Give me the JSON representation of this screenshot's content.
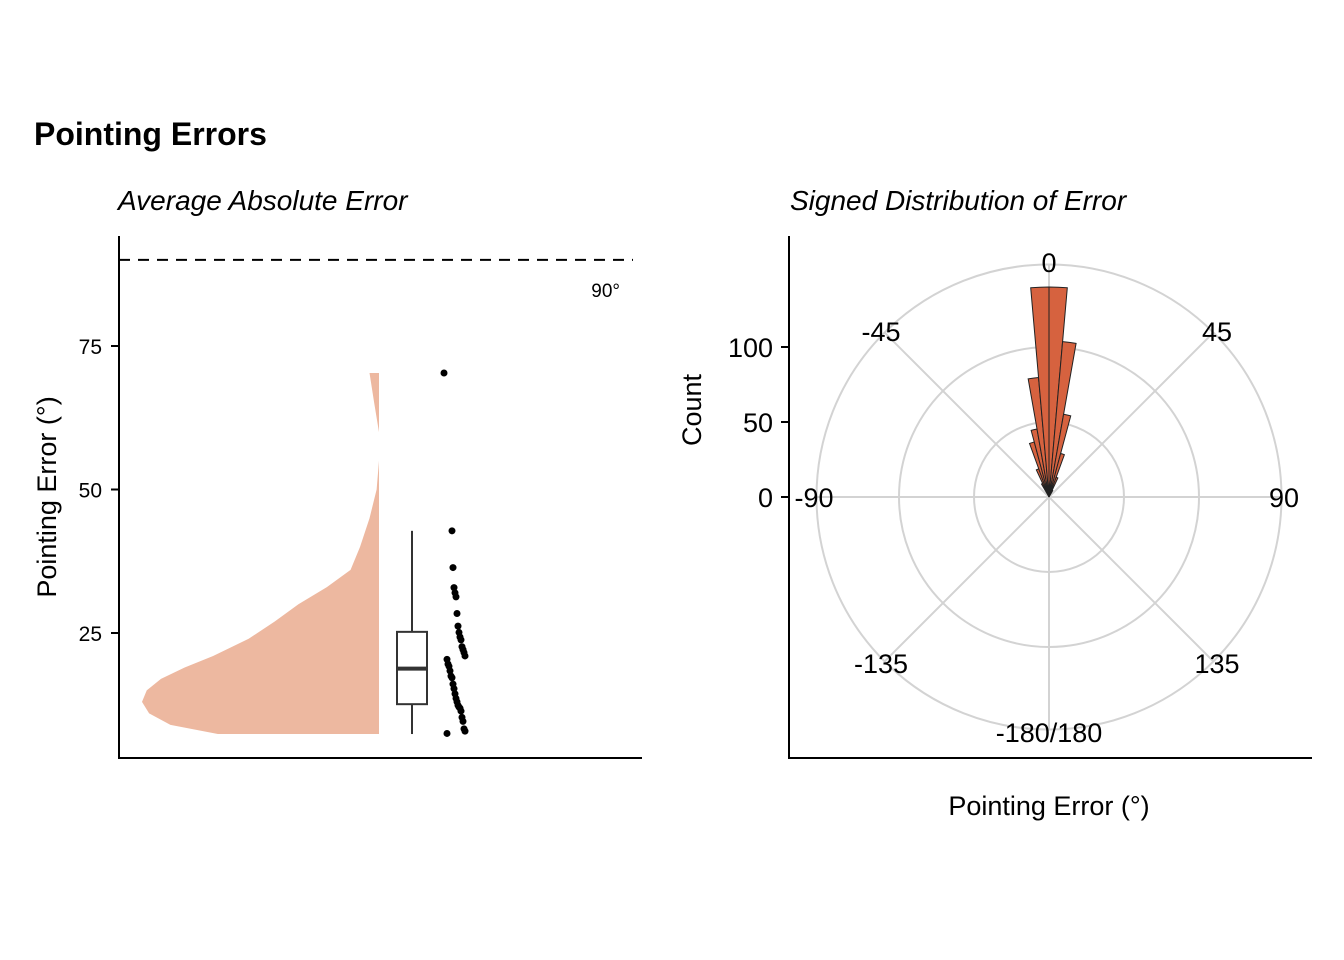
{
  "title": "Pointing Errors",
  "chart_data": [
    {
      "type": "raincloud",
      "subtitle": "Average Absolute Error",
      "ylabel": "Pointing Error (°)",
      "xlabel": "",
      "ylim": [
        5,
        93
      ],
      "yticks": [
        25,
        50,
        75
      ],
      "reference_line": {
        "value": 90,
        "label": "90°",
        "style": "dashed"
      },
      "color": "#EDB8A0",
      "density_profile": [
        {
          "y": 7.4,
          "w": 0.68
        },
        {
          "y": 9,
          "w": 0.88
        },
        {
          "y": 11,
          "w": 0.97
        },
        {
          "y": 13,
          "w": 1.0
        },
        {
          "y": 15,
          "w": 0.98
        },
        {
          "y": 17,
          "w": 0.92
        },
        {
          "y": 19,
          "w": 0.82
        },
        {
          "y": 21,
          "w": 0.7
        },
        {
          "y": 24,
          "w": 0.55
        },
        {
          "y": 27,
          "w": 0.44
        },
        {
          "y": 30,
          "w": 0.34
        },
        {
          "y": 33,
          "w": 0.22
        },
        {
          "y": 36,
          "w": 0.12
        },
        {
          "y": 40,
          "w": 0.08
        },
        {
          "y": 45,
          "w": 0.04
        },
        {
          "y": 50,
          "w": 0.01
        },
        {
          "y": 55,
          "w": 0.0
        },
        {
          "y": 60,
          "w": 0.0
        },
        {
          "y": 65,
          "w": 0.02
        },
        {
          "y": 70.3,
          "w": 0.04
        }
      ],
      "boxplot": {
        "min": 7.4,
        "q1": 12.6,
        "median": 18.8,
        "q3": 25.2,
        "max": 42.8,
        "outliers": [
          70.3
        ]
      },
      "points": [
        7.5,
        7.9,
        8.3,
        9.6,
        10.3,
        11.4,
        11.9,
        12.1,
        12.4,
        13.0,
        13.6,
        14.4,
        15.3,
        16.1,
        17.2,
        17.5,
        18.4,
        19.2,
        19.6,
        20.4,
        21.0,
        21.6,
        22.1,
        22.6,
        23.8,
        24.3,
        25.1,
        26.2,
        28.4,
        31.3,
        32.0,
        32.9,
        36.4,
        42.8,
        70.3
      ]
    },
    {
      "type": "polar-histogram",
      "subtitle": "Signed Distribution of Error",
      "xlabel": "Pointing Error (°)",
      "ylabel": "Count",
      "rlim": [
        0,
        150
      ],
      "rticks": [
        0,
        50,
        100
      ],
      "angle_labels": [
        "0",
        "45",
        "90",
        "135",
        "-180/180",
        "-135",
        "-90",
        "-45"
      ],
      "color": "#D6623F",
      "bins": [
        {
          "start": -90,
          "end": -30,
          "count": 0
        },
        {
          "start": -30,
          "end": -25,
          "count": 10
        },
        {
          "start": -25,
          "end": -20,
          "count": 20
        },
        {
          "start": -20,
          "end": -15,
          "count": 38
        },
        {
          "start": -15,
          "end": -10,
          "count": 46
        },
        {
          "start": -10,
          "end": -5,
          "count": 80
        },
        {
          "start": -5,
          "end": 0,
          "count": 140
        },
        {
          "start": 0,
          "end": 5,
          "count": 140
        },
        {
          "start": 5,
          "end": 10,
          "count": 104
        },
        {
          "start": 10,
          "end": 15,
          "count": 56
        },
        {
          "start": 15,
          "end": 20,
          "count": 30
        },
        {
          "start": 20,
          "end": 25,
          "count": 14
        },
        {
          "start": 25,
          "end": 30,
          "count": 5
        }
      ]
    }
  ]
}
